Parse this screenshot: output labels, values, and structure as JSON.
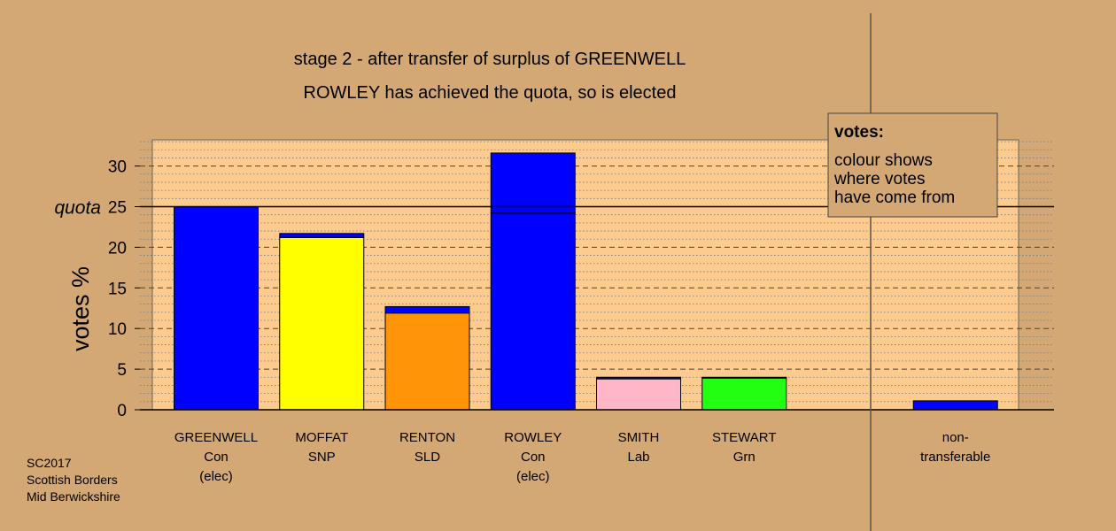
{
  "chart_data": {
    "type": "bar",
    "title": "stage 2 - after transfer of surplus of GREENWELL",
    "subtitle": "ROWLEY has achieved the quota, so is elected",
    "ylabel": "votes %",
    "ylim": [
      0,
      33
    ],
    "yticks": [
      0,
      5,
      10,
      15,
      20,
      25,
      30
    ],
    "quota": 25,
    "quota_label": "quota",
    "grid": true,
    "categories": [
      {
        "lines": [
          "GREENWELL",
          "Con",
          "(elec)"
        ]
      },
      {
        "lines": [
          "MOFFAT",
          "SNP"
        ]
      },
      {
        "lines": [
          "RENTON",
          "SLD"
        ]
      },
      {
        "lines": [
          "ROWLEY",
          "Con",
          "(elec)"
        ]
      },
      {
        "lines": [
          "SMITH",
          "Lab"
        ]
      },
      {
        "lines": [
          "STEWART",
          "Grn"
        ]
      },
      {
        "lines": []
      },
      {
        "lines": [
          "non-",
          "transferable"
        ]
      }
    ],
    "bars": [
      {
        "segments": [
          {
            "value": 25.0,
            "color": "#0000ff"
          }
        ]
      },
      {
        "segments": [
          {
            "value": 21.2,
            "color": "#ffff00"
          },
          {
            "value": 0.5,
            "color": "#0000ff"
          }
        ]
      },
      {
        "segments": [
          {
            "value": 11.9,
            "color": "#ff9408"
          },
          {
            "value": 0.8,
            "color": "#0000ff"
          }
        ]
      },
      {
        "segments": [
          {
            "value": 24.2,
            "color": "#0000ff"
          },
          {
            "value": 7.4,
            "color": "#0000ff"
          }
        ]
      },
      {
        "segments": [
          {
            "value": 3.8,
            "color": "#ffb6c6"
          },
          {
            "value": 0.2,
            "color": "#0000ff"
          }
        ]
      },
      {
        "segments": [
          {
            "value": 3.9,
            "color": "#22ff11"
          },
          {
            "value": 0.1,
            "color": "#0000ff"
          }
        ]
      },
      {
        "segments": []
      },
      {
        "segments": [
          {
            "value": 1.1,
            "color": "#0000ff"
          }
        ]
      }
    ],
    "legend": {
      "placement": "top-right",
      "title": "votes:",
      "lines": [
        "colour shows",
        "where votes",
        "have come from"
      ]
    },
    "footnote": [
      "SC2017",
      "Scottish Borders",
      "Mid Berwickshire"
    ],
    "colors": {
      "background": "#d3a874",
      "plot_background": "#fecb8e",
      "legend_background": "#d3a874"
    }
  }
}
